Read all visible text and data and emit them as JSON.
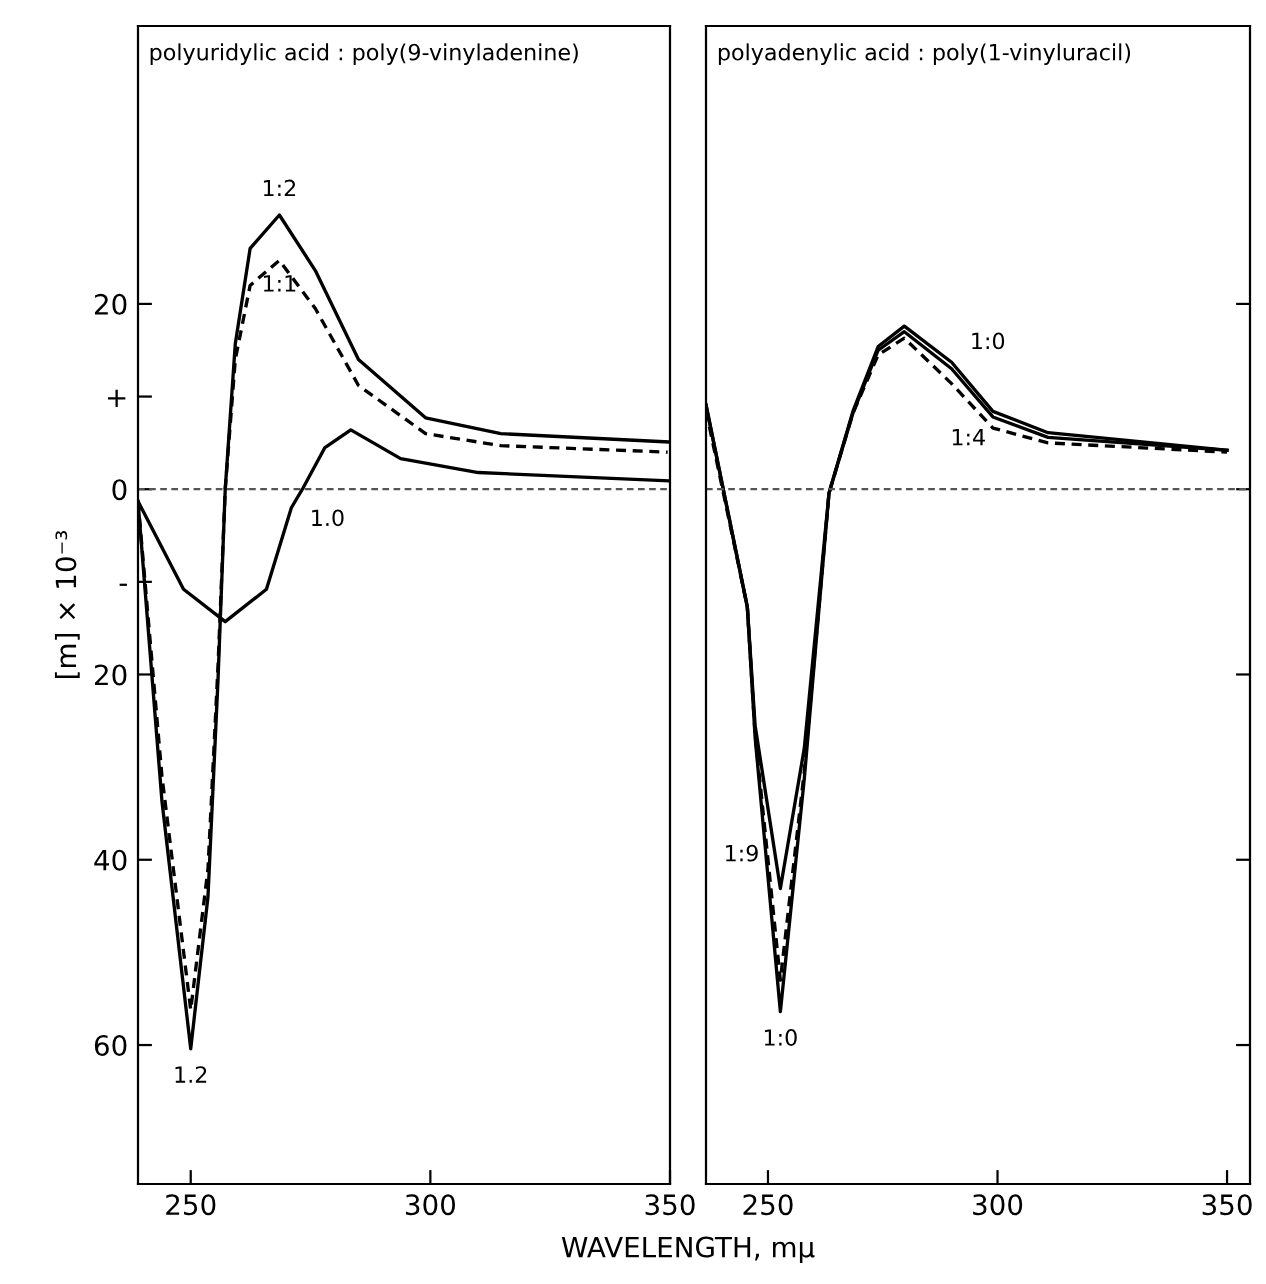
{
  "chart_data": [
    {
      "type": "line",
      "title": "polyuridylic acid : poly(9-vinyladenine)",
      "xlabel": "WAVELENGTH, mμ",
      "ylabel": "[m] × 10⁻³",
      "xlim": [
        239,
        350
      ],
      "xticks": [
        250,
        300,
        350
      ],
      "ylim": [
        -75,
        50
      ],
      "yticks": [
        20,
        {
          "value": 10,
          "label": "+"
        },
        0,
        {
          "value": -10,
          "label": "-"
        },
        {
          "value": -20,
          "label": "20"
        },
        {
          "value": -40,
          "label": "40"
        },
        {
          "value": -60,
          "label": "60"
        }
      ],
      "series": [
        {
          "color": "#000000",
          "line_style": "solid",
          "x": [
            239,
            244,
            250,
            253.6,
            255.7,
            257.2,
            259.3,
            262.4,
            268.5,
            276,
            285,
            299,
            314.7,
            349.5
          ],
          "values": [
            -1.3,
            -33.7,
            -60.4,
            -44,
            -20.5,
            0,
            15.7,
            26,
            29.6,
            23.6,
            14,
            7.7,
            6,
            5.1
          ]
        },
        {
          "color": "#000000",
          "line_style": "dashed",
          "x": [
            239,
            244,
            250,
            253.6,
            255.7,
            257.2,
            259.3,
            262.4,
            268.5,
            276,
            285,
            299,
            314.7,
            349.5
          ],
          "values": [
            -1.3,
            -31,
            -56.2,
            -41,
            -19,
            0,
            14,
            22,
            24.7,
            19.5,
            11.2,
            6,
            4.7,
            4
          ]
        },
        {
          "color": "#000000",
          "line_style": "solid",
          "x": [
            239,
            248.5,
            257.2,
            265.8,
            271,
            273.3,
            278,
            283.4,
            293.8,
            310,
            349.5
          ],
          "values": [
            -1.3,
            -10.8,
            -14.3,
            -10.8,
            -2,
            0,
            4.5,
            6.4,
            3.3,
            1.8,
            0.9
          ]
        }
      ],
      "ref_lines": [
        {
          "axis": "y",
          "value": 0,
          "line_style": "dashed",
          "color": "#555555"
        }
      ],
      "annotations": [
        {
          "text": "1:2",
          "x": 268.5,
          "y": 29.6
        },
        {
          "text": "1:1",
          "x": 268.5,
          "y": 24.7
        },
        {
          "text": "1.0",
          "x": 273.3,
          "y": 0
        },
        {
          "text": "1.2",
          "x": 250,
          "y": -60.4
        }
      ]
    },
    {
      "type": "line",
      "title": "polyadenylic acid : poly(1-vinyluracil)",
      "xlim": [
        236.5,
        355
      ],
      "xticks": [
        250,
        300,
        350
      ],
      "ylim": [
        -75,
        50
      ],
      "tick_labels": "x",
      "yticks": [
        {
          "value": 20,
          "label": null
        },
        {
          "value": 0,
          "label": null
        },
        {
          "value": -20,
          "label": null
        },
        {
          "value": -40,
          "label": null
        },
        {
          "value": -60,
          "label": null
        }
      ],
      "series": [
        {
          "color": "#000000",
          "line_style": "solid",
          "x": [
            236.5,
            245.5,
            247.2,
            252.7,
            257.9,
            263.3,
            268.5,
            274,
            279.7,
            290,
            299,
            311,
            350
          ],
          "values": [
            9.1,
            -12.7,
            -26.8,
            -56.4,
            -31.3,
            -0.4,
            8.4,
            15.4,
            17.6,
            13.7,
            8.4,
            6.1,
            4.2
          ]
        },
        {
          "color": "#000000",
          "line_style": "solid",
          "x": [
            236.5,
            245.5,
            247.2,
            252.7,
            257.9,
            263.3,
            268.5,
            274,
            279.7,
            290,
            299,
            311,
            350
          ],
          "values": [
            9.1,
            -12.7,
            -25.5,
            -43.1,
            -28,
            -0.4,
            8.2,
            15,
            17,
            13,
            7.8,
            5.6,
            4.2
          ]
        },
        {
          "color": "#000000",
          "line_style": "dashed",
          "x": [
            236.5,
            245.5,
            247.2,
            252.7,
            257.9,
            263.3,
            268.5,
            274,
            279.7,
            290,
            299,
            311,
            350
          ],
          "values": [
            8.5,
            -12.7,
            -26.5,
            -53,
            -30.5,
            -0.4,
            8.2,
            14.5,
            16.3,
            11.4,
            6.6,
            5,
            4
          ]
        }
      ],
      "ref_lines": [
        {
          "axis": "y",
          "value": 0,
          "line_style": "dashed",
          "color": "#555555"
        }
      ],
      "annotations": [
        {
          "text": "1:0",
          "x": 290,
          "y": 13.7
        },
        {
          "text": "1:4",
          "x": 290,
          "y": 11.4
        },
        {
          "text": "1:9",
          "x": 252.7,
          "y": -43.1
        },
        {
          "text": "1:0",
          "x": 252.7,
          "y": -56.4
        }
      ]
    }
  ]
}
